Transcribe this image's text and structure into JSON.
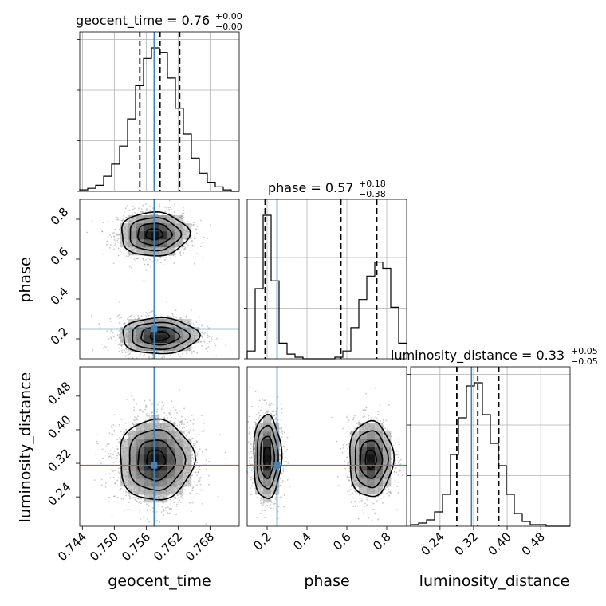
{
  "colors": {
    "truth": "#4682b4",
    "hist": "#000000",
    "grid": "#b0b0b0",
    "scatter": "#9a9a9a"
  },
  "titles": [
    {
      "name": "geocent_time",
      "value": "0.76",
      "plus": "+0.00",
      "minus": "−0.00"
    },
    {
      "name": "phase",
      "value": "0.57",
      "plus": "+0.18",
      "minus": "−0.38"
    },
    {
      "name": "luminosity_distance",
      "value": "0.33",
      "plus": "+0.05",
      "minus": "−0.05"
    }
  ],
  "chart_data": {
    "type": "corner",
    "parameters": [
      "geocent_time",
      "phase",
      "luminosity_distance"
    ],
    "axis_labels": {
      "x": [
        "geocent_time",
        "phase",
        "luminosity_distance"
      ],
      "y": [
        "phase",
        "luminosity_distance"
      ]
    },
    "ranges": [
      [
        0.7435,
        0.7735
      ],
      [
        0.1,
        0.9
      ],
      [
        0.17,
        0.55
      ]
    ],
    "ticks": [
      [
        "0.744",
        "0.750",
        "0.756",
        "0.762",
        "0.768"
      ],
      [
        "0.2",
        "0.4",
        "0.6",
        "0.8"
      ],
      [
        "0.24",
        "0.32",
        "0.40",
        "0.48"
      ]
    ],
    "truths": [
      0.7575,
      0.25,
      0.315
    ],
    "quantiles": [
      [
        0.7548,
        0.7586,
        0.7623
      ],
      [
        0.19,
        0.57,
        0.75
      ],
      [
        0.28,
        0.33,
        0.38
      ]
    ],
    "histograms": [
      {
        "param": "geocent_time",
        "edges_start": 0.7435,
        "bin_width": 0.0015,
        "counts": [
          1,
          2,
          4,
          10,
          18,
          30,
          48,
          70,
          88,
          95,
          92,
          75,
          55,
          38,
          22,
          12,
          6,
          3,
          1,
          0
        ]
      },
      {
        "param": "phase",
        "edges_start": 0.1,
        "bin_width": 0.04,
        "counts": [
          5,
          45,
          92,
          50,
          10,
          3,
          1,
          0,
          0,
          0,
          0,
          1,
          5,
          20,
          38,
          53,
          62,
          58,
          33,
          10
        ]
      },
      {
        "param": "luminosity_distance",
        "edges_start": 0.17,
        "bin_width": 0.019,
        "counts": [
          1,
          2,
          4,
          9,
          20,
          45,
          68,
          88,
          90,
          70,
          52,
          38,
          20,
          8,
          3,
          1,
          1,
          0,
          0,
          0
        ]
      }
    ],
    "modes_2d": [
      {
        "x": "geocent_time",
        "y": "phase",
        "centers": [
          [
            0.7575,
            0.72
          ],
          [
            0.7585,
            0.21
          ]
        ]
      },
      {
        "x": "geocent_time",
        "y": "luminosity_distance",
        "centers": [
          [
            0.7575,
            0.325
          ]
        ]
      },
      {
        "x": "phase",
        "y": "luminosity_distance",
        "centers": [
          [
            0.2,
            0.335
          ],
          [
            0.72,
            0.33
          ]
        ]
      }
    ],
    "grid": true,
    "legend": "none"
  }
}
